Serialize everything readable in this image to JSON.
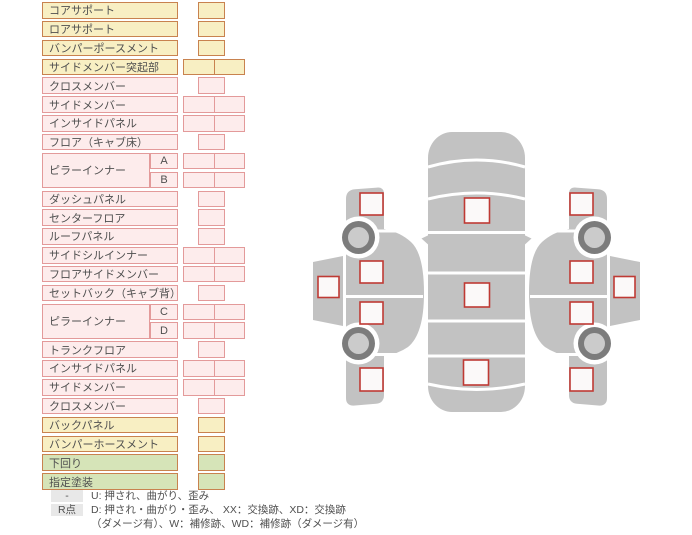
{
  "palette": {
    "yellow_bg": "#f8efc3",
    "yellow_border": "#c8824f",
    "pink_bg": "#fdecec",
    "pink_border": "#e39a9a",
    "green_bg": "#d6e4b8",
    "green_border": "#c8824f",
    "badge_bg": "#e8e8e8",
    "text": "#4f4f4f",
    "car_gray": "#c2c2c2",
    "wheel_dark": "#7c7c7c",
    "wheel_light": "#cbcbcb",
    "cell_fill": "#fbf9f9",
    "square_border": "#bf3a34"
  },
  "table": {
    "rows": [
      {
        "label": "コアサポート",
        "color": "yellow",
        "cells": "single"
      },
      {
        "label": "ロアサポート",
        "color": "yellow",
        "cells": "single"
      },
      {
        "label": "バンパーポースメント",
        "color": "yellow",
        "cells": "single"
      },
      {
        "label": "サイドメンバー突起部",
        "color": "yellow",
        "cells": "double"
      },
      {
        "label": "クロスメンバー",
        "color": "pink",
        "cells": "single"
      },
      {
        "label": "サイドメンバー",
        "color": "pink",
        "cells": "double"
      },
      {
        "label": "インサイドパネル",
        "color": "pink",
        "cells": "double"
      },
      {
        "label": "フロア（キャブ床）",
        "color": "pink",
        "cells": "single"
      },
      {
        "label": "ピラーインナー",
        "color": "pink",
        "cells": "double",
        "subs": [
          "A",
          "B"
        ]
      },
      {
        "label": "ダッシュパネル",
        "color": "pink",
        "cells": "single"
      },
      {
        "label": "センターフロア",
        "color": "pink",
        "cells": "single"
      },
      {
        "label": "ルーフパネル",
        "color": "pink",
        "cells": "single"
      },
      {
        "label": "サイドシルインナー",
        "color": "pink",
        "cells": "double"
      },
      {
        "label": "フロアサイドメンバー",
        "color": "pink",
        "cells": "double"
      },
      {
        "label": "セットバック（キャブ背）",
        "color": "pink",
        "cells": "single"
      },
      {
        "label": "ピラーインナー",
        "color": "pink",
        "cells": "double",
        "subs": [
          "C",
          "D"
        ]
      },
      {
        "label": "トランクフロア",
        "color": "pink",
        "cells": "single"
      },
      {
        "label": "インサイドパネル",
        "color": "pink",
        "cells": "double"
      },
      {
        "label": "サイドメンバー",
        "color": "pink",
        "cells": "double"
      },
      {
        "label": "クロスメンバー",
        "color": "pink",
        "cells": "single"
      },
      {
        "label": "バックパネル",
        "color": "yellow",
        "cells": "single"
      },
      {
        "label": "バンパーホースメント",
        "color": "yellow",
        "cells": "single"
      },
      {
        "label": "下回り",
        "color": "green",
        "cells": "single"
      },
      {
        "label": "指定塗装",
        "color": "green",
        "cells": "single"
      }
    ]
  },
  "legend": {
    "items": [
      {
        "badge": "-",
        "text": "U: 押され、曲がり、歪み"
      },
      {
        "badge": "R点",
        "text": "D: 押され・曲がり・歪み、 XX：交換跡、XD：交換跡",
        "text2": "（ダメージ有）、W：補修跡、WD：補修跡（ダメージ有）"
      }
    ]
  },
  "diagram": {
    "checkpoints": {
      "left_side": 5,
      "top_view": 3,
      "right_side": 5
    },
    "wheels": 4
  }
}
